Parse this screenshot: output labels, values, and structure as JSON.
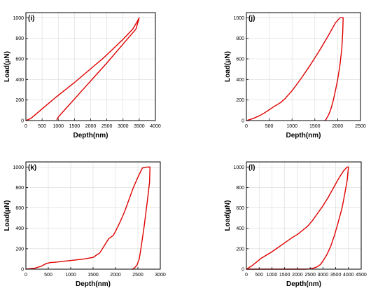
{
  "chart_data": [
    {
      "panel": "(i)",
      "type": "line",
      "xlabel": "Depth(nm)",
      "ylabel": "Load(μN)",
      "xlim": [
        0,
        4000
      ],
      "ylim": [
        0,
        1050
      ],
      "xticks": [
        0,
        500,
        1000,
        1500,
        2000,
        2500,
        3000,
        3500,
        4000
      ],
      "yticks": [
        0,
        200,
        400,
        600,
        800,
        1000
      ],
      "grid": true,
      "color": "#e00000",
      "series": [
        {
          "x": [
            0,
            150,
            300,
            600,
            900,
            1200,
            1500,
            1800,
            2100,
            2400,
            2700,
            3000,
            3300,
            3450,
            3500,
            3400,
            3100,
            2800,
            2500,
            2200,
            1900,
            1600,
            1300,
            1100,
            980,
            960
          ],
          "y": [
            0,
            20,
            60,
            140,
            220,
            295,
            370,
            450,
            530,
            610,
            700,
            790,
            890,
            970,
            1000,
            890,
            780,
            670,
            560,
            455,
            350,
            245,
            140,
            70,
            25,
            10
          ]
        }
      ]
    },
    {
      "panel": "(j)",
      "type": "line",
      "xlabel": "Depth(nm)",
      "ylabel": "Load(μN)",
      "xlim": [
        0,
        2500
      ],
      "ylim": [
        0,
        1050
      ],
      "xticks": [
        0,
        500,
        1000,
        1500,
        2000,
        2500
      ],
      "yticks": [
        0,
        200,
        400,
        600,
        800,
        1000
      ],
      "grid": true,
      "color": "#e00000",
      "series": [
        {
          "x": [
            0,
            150,
            300,
            450,
            600,
            750,
            850,
            1000,
            1200,
            1400,
            1600,
            1800,
            1950,
            2050,
            2120,
            2110,
            2090,
            2050,
            2000,
            1950,
            1900,
            1850,
            1800,
            1750,
            1720
          ],
          "y": [
            0,
            20,
            50,
            90,
            135,
            175,
            215,
            290,
            410,
            540,
            680,
            830,
            950,
            1000,
            1000,
            850,
            700,
            540,
            400,
            290,
            190,
            110,
            55,
            15,
            0
          ]
        }
      ]
    },
    {
      "panel": "(k)",
      "type": "line",
      "xlabel": "Depth(nm)",
      "ylabel": "Load(μN)",
      "xlim": [
        0,
        3000
      ],
      "ylim": [
        0,
        1050
      ],
      "xticks": [
        0,
        500,
        1000,
        1500,
        2000,
        2500,
        3000
      ],
      "yticks": [
        0,
        200,
        400,
        600,
        800,
        1000
      ],
      "grid": true,
      "color": "#e00000",
      "series": [
        {
          "x": [
            0,
            200,
            350,
            450,
            550,
            700,
            900,
            1100,
            1300,
            1500,
            1650,
            1750,
            1850,
            1950,
            2000,
            2100,
            2200,
            2300,
            2400,
            2500,
            2600,
            2700,
            2770,
            2760,
            2720,
            2680,
            2640,
            2600,
            2560,
            2530,
            2480,
            2420,
            2380
          ],
          "y": [
            0,
            10,
            30,
            55,
            65,
            70,
            80,
            90,
            100,
            115,
            160,
            230,
            300,
            330,
            370,
            460,
            560,
            680,
            800,
            900,
            990,
            1000,
            1000,
            850,
            700,
            560,
            420,
            300,
            180,
            100,
            40,
            10,
            0
          ]
        }
      ]
    },
    {
      "panel": "(l)",
      "type": "line",
      "xlabel": "Depth(nm)",
      "ylabel": "Load(μN)",
      "xlim": [
        0,
        4500
      ],
      "ylim": [
        0,
        1050
      ],
      "xticks": [
        0,
        500,
        1000,
        1500,
        2000,
        2500,
        3000,
        3500,
        4000,
        4500
      ],
      "yticks": [
        0,
        200,
        400,
        600,
        800,
        1000
      ],
      "grid": true,
      "color": "#e00000",
      "series": [
        {
          "x": [
            0,
            200,
            400,
            600,
            800,
            1000,
            1200,
            1400,
            1600,
            1800,
            2000,
            2200,
            2400,
            2600,
            2800,
            3000,
            3200,
            3400,
            3600,
            3800,
            3950,
            4000,
            3950,
            3850,
            3750,
            3600,
            3450,
            3300,
            3150,
            3000,
            2900,
            2750,
            2600,
            2450,
            2300,
            2000,
            1500,
            1000,
            500,
            0
          ],
          "y": [
            0,
            30,
            70,
            110,
            140,
            170,
            205,
            240,
            275,
            310,
            340,
            380,
            420,
            480,
            550,
            620,
            700,
            790,
            880,
            960,
            1000,
            1000,
            870,
            730,
            600,
            460,
            330,
            220,
            140,
            80,
            45,
            20,
            8,
            2,
            0,
            0,
            0,
            0,
            0,
            0
          ]
        }
      ]
    }
  ]
}
